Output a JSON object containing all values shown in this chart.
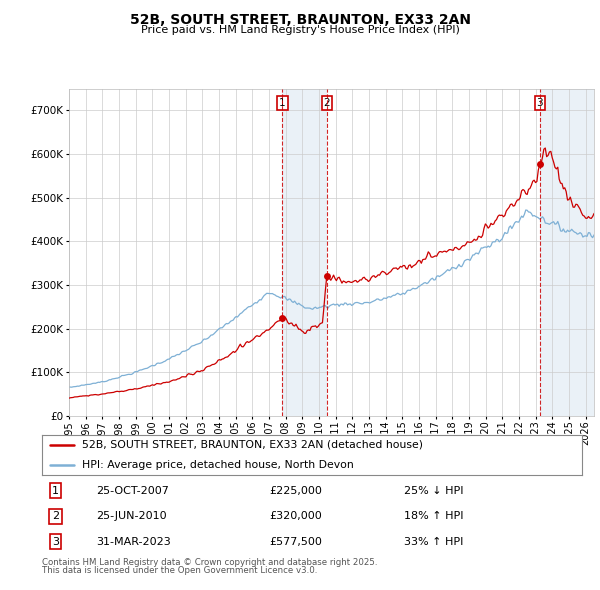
{
  "title": "52B, SOUTH STREET, BRAUNTON, EX33 2AN",
  "subtitle": "Price paid vs. HM Land Registry's House Price Index (HPI)",
  "legend_line1": "52B, SOUTH STREET, BRAUNTON, EX33 2AN (detached house)",
  "legend_line2": "HPI: Average price, detached house, North Devon",
  "transactions": [
    {
      "num": 1,
      "date": "25-OCT-2007",
      "price": 225000,
      "hpi_rel": "25% ↓ HPI",
      "year": 2007.81
    },
    {
      "num": 2,
      "date": "25-JUN-2010",
      "price": 320000,
      "hpi_rel": "18% ↑ HPI",
      "year": 2010.48
    },
    {
      "num": 3,
      "date": "31-MAR-2023",
      "price": 577500,
      "hpi_rel": "33% ↑ HPI",
      "year": 2023.25
    }
  ],
  "footnote1": "Contains HM Land Registry data © Crown copyright and database right 2025.",
  "footnote2": "This data is licensed under the Open Government Licence v3.0.",
  "hpi_color": "#7eb0d5",
  "price_color": "#cc0000",
  "transaction_vline_color": "#cc0000",
  "transaction_box_color": "#cc0000",
  "ylim": [
    0,
    750000
  ],
  "xlim_start": 1995.0,
  "xlim_end": 2026.5,
  "background_color": "#ffffff",
  "grid_color": "#cccccc",
  "shade_color": "#d6e4f0",
  "shade_alpha": 0.5
}
